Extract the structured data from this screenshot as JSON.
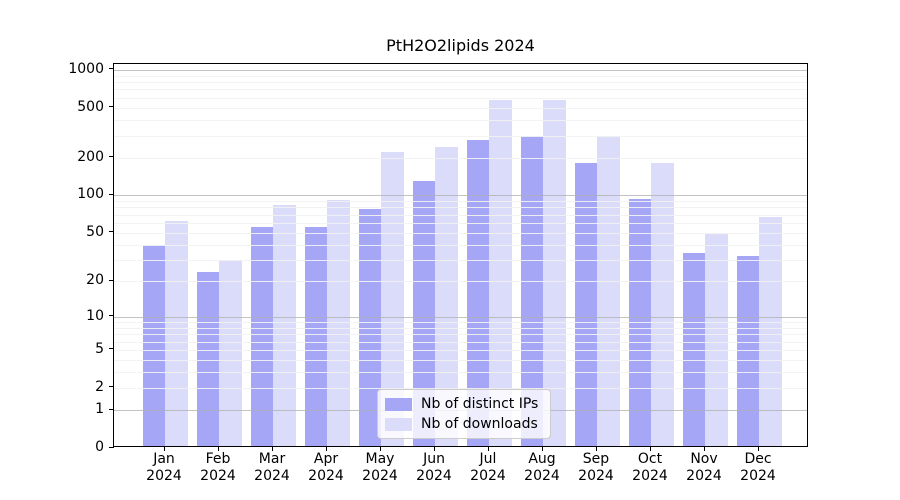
{
  "chart_data": {
    "type": "bar",
    "title": "PtH2O2lipids 2024",
    "categories": [
      "Jan 2024",
      "Feb 2024",
      "Mar 2024",
      "Apr 2024",
      "May 2024",
      "Jun 2024",
      "Jul 2024",
      "Aug 2024",
      "Sep 2024",
      "Oct 2024",
      "Nov 2024",
      "Dec 2024"
    ],
    "series": [
      {
        "name": "Nb of distinct IPs",
        "color": "#a6a6f6",
        "values": [
          38,
          23,
          54,
          54,
          75,
          125,
          265,
          285,
          175,
          90,
          33,
          31
        ]
      },
      {
        "name": "Nb of downloads",
        "color": "#dbdbfa",
        "values": [
          60,
          29,
          80,
          88,
          215,
          235,
          550,
          550,
          285,
          175,
          47,
          64
        ]
      }
    ],
    "y_scale": "log1p",
    "ylim": [
      0,
      1110
    ],
    "y_ticks": [
      1000,
      500,
      200,
      100,
      50,
      20,
      10,
      5,
      2,
      1,
      0
    ],
    "y_major_gridlines": [
      1,
      10,
      100,
      1000
    ],
    "y_minor_gridlines": [
      2,
      3,
      4,
      5,
      6,
      7,
      8,
      9,
      20,
      30,
      40,
      50,
      60,
      70,
      80,
      90,
      200,
      300,
      400,
      500,
      600,
      700,
      800,
      900
    ],
    "xlabel": "",
    "ylabel": "",
    "grid": true,
    "legend_position": "lower center inside"
  }
}
